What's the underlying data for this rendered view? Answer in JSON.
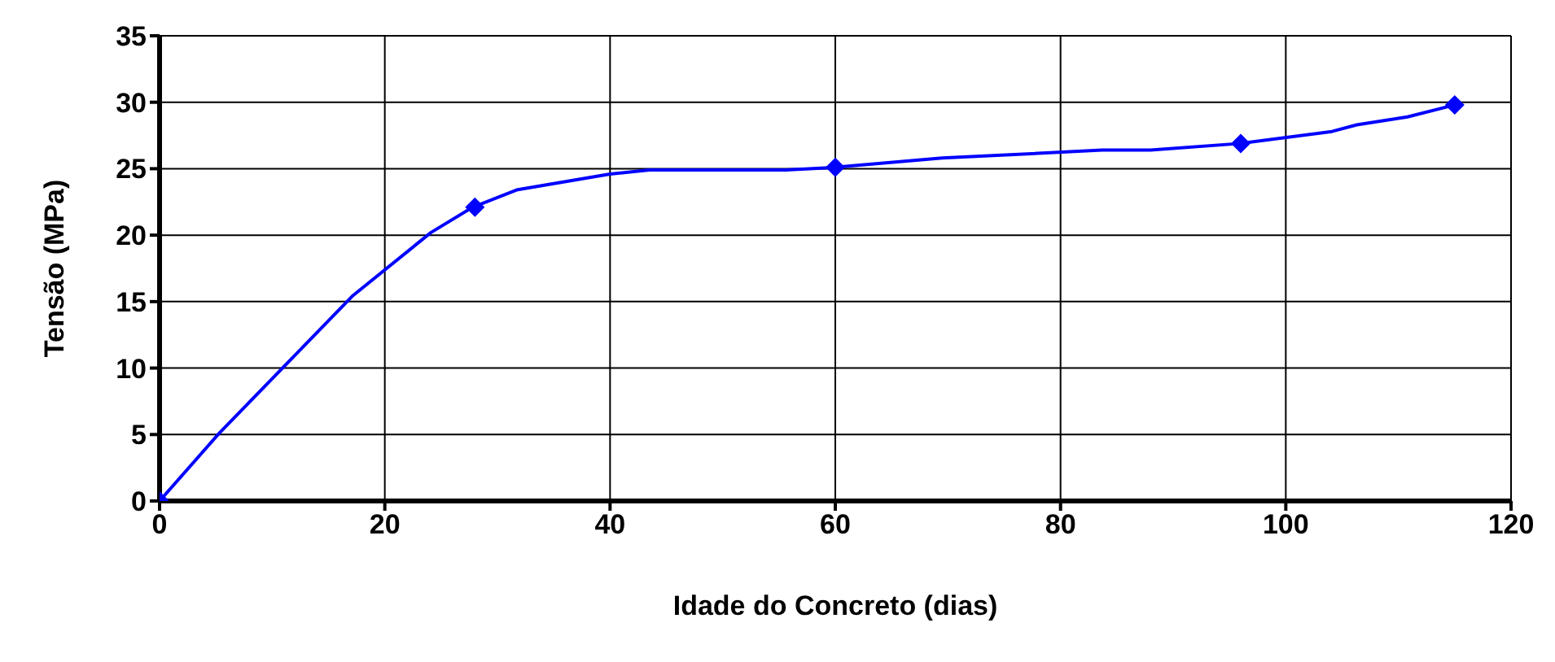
{
  "chart_data": {
    "type": "line",
    "xlabel": "Idade do Concreto (dias)",
    "ylabel": "Tensão (MPa)",
    "xlim": [
      0,
      120
    ],
    "xticks": [
      0,
      20,
      40,
      60,
      80,
      100,
      120
    ],
    "ylim": [
      0,
      35
    ],
    "yticks": [
      0,
      5,
      10,
      15,
      20,
      25,
      30,
      35
    ],
    "grid": true,
    "series": [
      {
        "color": "#0000ff",
        "marker": "none",
        "x": [
          0,
          5.3,
          17.1,
          24.1,
          27.8,
          31.7,
          40,
          43.5,
          55.6,
          59.9,
          69.5,
          83.7,
          88,
          96,
          104.1,
          106.3,
          110.8,
          115
        ],
        "values": [
          0,
          5.1,
          15.4,
          20.2,
          22.1,
          23.4,
          24.6,
          24.9,
          24.9,
          25.1,
          25.8,
          26.4,
          26.4,
          26.9,
          27.8,
          28.3,
          28.9,
          29.8
        ]
      },
      {
        "type": "scatter",
        "color": "#0000ff",
        "marker": "diamond",
        "x": [
          0,
          28,
          60,
          96,
          115
        ],
        "values": [
          0,
          22.1,
          25.1,
          26.9,
          29.8
        ]
      }
    ]
  }
}
